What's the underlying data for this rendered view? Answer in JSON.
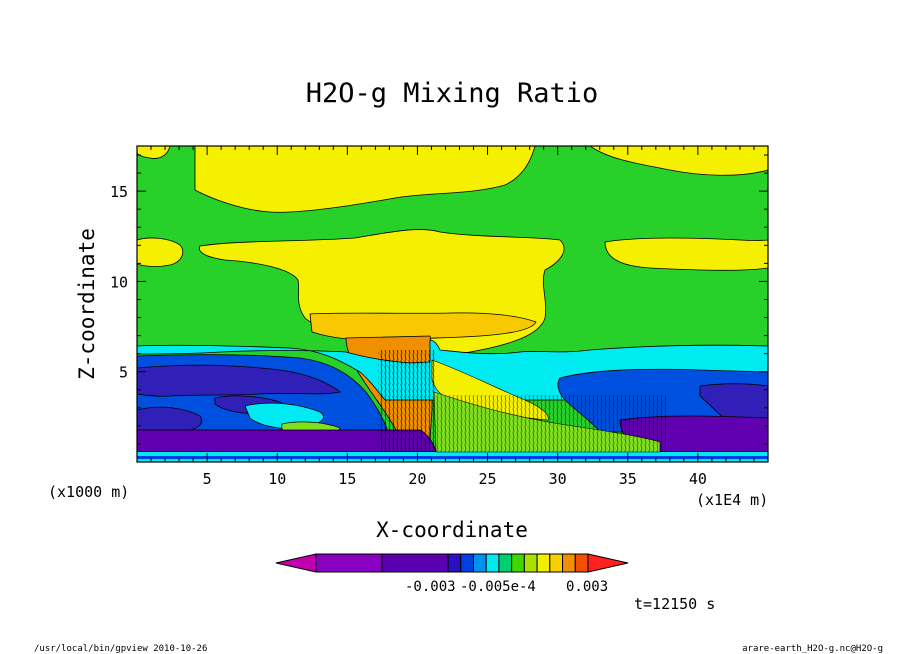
{
  "chart_data": {
    "type": "heatmap",
    "title": "H2O-g Mixing Ratio",
    "xlabel": "X-coordinate",
    "ylabel": "Z-coordinate",
    "x_unit_left": "(x1000 m)",
    "x_unit_right": "(x1E4 m)",
    "xlim": [
      0,
      45
    ],
    "ylim": [
      0,
      17.5
    ],
    "x_ticks": [
      5,
      10,
      15,
      20,
      25,
      30,
      35,
      40
    ],
    "y_ticks": [
      5,
      10,
      15
    ],
    "colorbar": {
      "colors": [
        "#c000b0",
        "#8800c0",
        "#5a00b0",
        "#2a10c0",
        "#0040e0",
        "#0090f0",
        "#00e8f0",
        "#00d070",
        "#40d800",
        "#a8e000",
        "#f0f000",
        "#f8d000",
        "#f09000",
        "#f05000",
        "#ff2020"
      ],
      "labels": [
        "-0.003",
        "-0.005e-4",
        "0.003"
      ]
    },
    "regions": [
      {
        "name": "background",
        "color": "#28d12a"
      },
      {
        "name": "upper-band",
        "color": "#f4f000"
      },
      {
        "name": "anvil",
        "color": "#f4f000"
      },
      {
        "name": "anvil-core",
        "color": "#f8c800"
      },
      {
        "name": "updraft",
        "color": "#f09000"
      },
      {
        "name": "lower-cyan",
        "color": "#00eaf2"
      },
      {
        "name": "lower-blue",
        "color": "#0050e0"
      },
      {
        "name": "lower-navy",
        "color": "#3020b8"
      },
      {
        "name": "surface-purple",
        "color": "#6000b0"
      }
    ]
  },
  "annotations": {
    "time": "t=12150 s",
    "footer_left": "/usr/local/bin/gpview  2010-10-26",
    "footer_right": "arare-earth_H2O-g.nc@H2O-g"
  }
}
